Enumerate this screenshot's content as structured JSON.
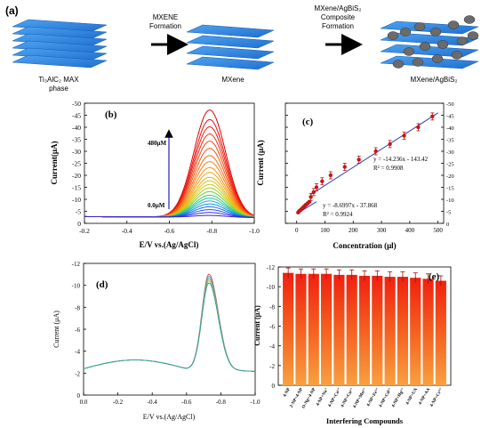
{
  "panels": {
    "a": {
      "label": "(a)",
      "stage1": {
        "line1": "Ti₃AlC₂ MAX",
        "line2": "phase"
      },
      "arrow1": {
        "line1": "MXENE",
        "line2": "Formation"
      },
      "stage2": {
        "name": "MXene"
      },
      "arrow2": {
        "line1": "MXene/AgBiS₂",
        "line2": "Composite",
        "line3": "Formation"
      },
      "stage3": {
        "name": "MXene/AgBiS₂"
      }
    },
    "b": {
      "label": "(b)",
      "ylabel": "Current(μA)",
      "xlabel": "E/V vs.(Ag/AgCl)",
      "yticks": [
        "-50",
        "-45",
        "-40",
        "-35",
        "-30",
        "-25",
        "-20",
        "-15",
        "-10",
        "-5",
        "0"
      ],
      "xticks": [
        "-0.2",
        "-0.4",
        "-0.6",
        "-0.8",
        "-1.0"
      ],
      "annot_top": "480μM",
      "annot_bottom": "0.0μM"
    },
    "c": {
      "label": "(c)",
      "ylabel": "Current (μA)",
      "xlabel": "Concentration (μl)",
      "yticks": [
        "-50",
        "-45",
        "-40",
        "-35",
        "-30",
        "-25",
        "-20",
        "-15",
        "-10",
        "-5",
        "0"
      ],
      "xticks": [
        "0",
        "100",
        "200",
        "300",
        "400",
        "500"
      ],
      "eq1": "y = -14.236x - 143.42",
      "r1": "R² = 0.9908",
      "eq2": "y = -8.6997x - 37.868",
      "r2": "R² = 0.9924"
    },
    "d": {
      "label": "(d)",
      "ylabel": "Current (μA)",
      "xlabel": "E/V vs.(Ag/AgCl)",
      "yticks": [
        "-12",
        "-10",
        "-8",
        "-6",
        "-4",
        "-2",
        "0"
      ],
      "xticks": [
        "0.0",
        "-0.2",
        "-0.4",
        "-0.6",
        "-0.8",
        "-1.0"
      ]
    },
    "e": {
      "label": "(e)",
      "ylabel": "Current (μA)",
      "xlabel": "Interfering Compounds",
      "yticks": [
        "-12",
        "-10",
        "-8",
        "-6",
        "-4",
        "-2",
        "0"
      ]
    }
  },
  "chart_data": [
    {
      "panel": "b",
      "type": "line",
      "xlim": [
        -0.2,
        -1.0
      ],
      "ylim": [
        0,
        -50
      ],
      "peak_potential": -0.79,
      "baseline": -2.8,
      "series_peaks": [
        -47.5,
        -43.5,
        -40.5,
        -37.5,
        -34.5,
        -31.5,
        -28.5,
        -26,
        -23.5,
        -21.5,
        -19.5,
        -18,
        -16.5,
        -15,
        -13.5,
        -12,
        -10.8,
        -9.6,
        -8.4,
        -7.2,
        -6,
        -4.8,
        -3.6
      ],
      "colors": [
        "#e00000",
        "#e81010",
        "#ee2010",
        "#f03010",
        "#f24410",
        "#f45810",
        "#f66c10",
        "#f88010",
        "#f89010",
        "#f8a010",
        "#f0b010",
        "#e0c010",
        "#c8cc10",
        "#a0d020",
        "#70d040",
        "#40c870",
        "#20c0a0",
        "#10b0c8",
        "#1090e0",
        "#1070f0",
        "#2050f0",
        "#3030e0",
        "#4020c8"
      ]
    },
    {
      "panel": "c",
      "type": "scatter",
      "xlim": [
        -40,
        520
      ],
      "ylim": [
        0,
        -50
      ],
      "x": [
        5,
        8,
        11,
        14,
        17,
        20,
        23,
        26,
        29,
        32,
        36,
        40,
        45,
        50,
        60,
        70,
        90,
        120,
        170,
        220,
        280,
        330,
        380,
        430,
        480
      ],
      "y": [
        -4.5,
        -5,
        -5.3,
        -5.6,
        -5.9,
        -6.3,
        -6.6,
        -7,
        -7.3,
        -7.7,
        -8,
        -8.5,
        -9,
        -11,
        -13,
        -15,
        -17.5,
        -20,
        -23.5,
        -26.5,
        -30,
        -33,
        -36.5,
        -40,
        -44.5
      ],
      "fit1": {
        "x": [
          50,
          500
        ],
        "y": [
          -12,
          -46
        ]
      },
      "fit2": {
        "x": [
          0,
          70
        ],
        "y": [
          -4,
          -9
        ]
      }
    },
    {
      "panel": "d",
      "type": "line",
      "xlim": [
        0.0,
        -1.0
      ],
      "ylim": [
        0,
        -12
      ],
      "peak_potential": -0.73,
      "peaks": [
        -11.3,
        -11.1,
        -10.9,
        -10.7,
        -10.5
      ],
      "colors": [
        "#e04040",
        "#40a0e0",
        "#60b060",
        "#e0a040",
        "#20a0a0"
      ]
    },
    {
      "panel": "e",
      "type": "bar",
      "categories": [
        "4-NP",
        "2-NP+4-NP",
        "O-Np+4-NP",
        "4-NP+Na⁺",
        "4-NP+Ca²⁺",
        "4-NP+Cu²⁺",
        "4-NP+Mn²⁺",
        "4-NP+Fe³⁺",
        "4-NP+Cd²⁺",
        "4-NP+Hg²⁺",
        "4-NP+UA",
        "4-NP+AA",
        "4-NP+Cr²⁺"
      ],
      "values": [
        -11.4,
        -11.3,
        -11.3,
        -11.3,
        -11.2,
        -11.2,
        -11.1,
        -11.1,
        -11.0,
        -11.0,
        -10.9,
        -10.8,
        -10.6
      ],
      "errors": [
        0.5,
        0.5,
        0.5,
        0.5,
        0.5,
        0.5,
        0.5,
        0.5,
        0.5,
        0.5,
        0.5,
        0.5,
        0.5
      ],
      "ylim": [
        0,
        -12
      ]
    }
  ]
}
